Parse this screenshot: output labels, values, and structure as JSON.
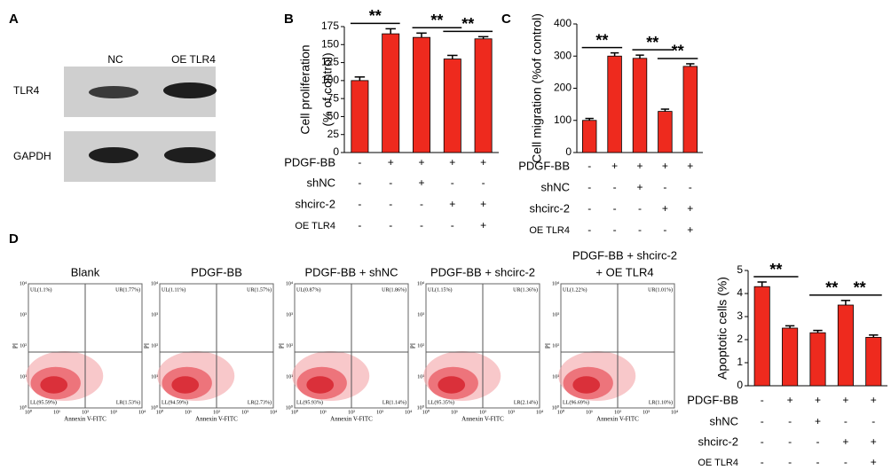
{
  "panels": [
    "A",
    "B",
    "C",
    "D"
  ],
  "western_blot": {
    "columns": [
      "NC",
      "OE TLR4"
    ],
    "rows": [
      "TLR4",
      "GAPDH"
    ]
  },
  "flow": {
    "x_label": "Annexin V-FITC",
    "y_label": "PI",
    "ticks": [
      "10⁰",
      "10¹",
      "10²",
      "10³",
      "10⁴"
    ],
    "plots": [
      {
        "title": [
          "Blank"
        ],
        "UL": "UL(1.1%)",
        "UR": "UR(1.77%)",
        "LL": "LL(95.59%)",
        "LR": "LR(1.53%)"
      },
      {
        "title": [
          "PDGF-BB"
        ],
        "UL": "UL(1.11%)",
        "UR": "UR(1.57%)",
        "LL": "LL(94.59%)",
        "LR": "LR(2.73%)"
      },
      {
        "title": [
          "PDGF-BB + shNC"
        ],
        "UL": "UL(0.87%)",
        "UR": "UR(1.86%)",
        "LL": "LL(95.93%)",
        "LR": "LR(1.14%)"
      },
      {
        "title": [
          "PDGF-BB + shcirc-2"
        ],
        "UL": "UL(1.15%)",
        "UR": "UR(1.36%)",
        "LL": "LL(95.35%)",
        "LR": "LR(2.14%)"
      },
      {
        "title": [
          "PDGF-BB + shcirc-2",
          "+ OE TLR4"
        ],
        "UL": "UL(1.22%)",
        "UR": "UR(1.01%)",
        "LL": "LL(96.69%)",
        "LR": "LR(1.10%)"
      }
    ]
  },
  "chart_data": [
    {
      "type": "bar",
      "y_label": [
        "Cell proliferation",
        "(% of control)"
      ],
      "color": "#ee2a1e",
      "values": [
        100,
        165,
        160,
        130,
        158
      ],
      "errors": [
        5,
        7,
        6,
        5,
        3
      ],
      "ylim": [
        0,
        175
      ],
      "yticks": [
        0,
        25,
        50,
        75,
        100,
        125,
        150,
        175
      ],
      "annotations": [
        {
          "text": "**",
          "between": [
            0,
            1
          ]
        },
        {
          "text": "**",
          "between": [
            2,
            3
          ]
        },
        {
          "text": "**",
          "between": [
            3,
            4
          ]
        }
      ],
      "treatments": [
        {
          "name": "PDGF-BB",
          "signs": [
            "-",
            "+",
            "+",
            "+",
            "+"
          ]
        },
        {
          "name": "shNC",
          "signs": [
            "-",
            "-",
            "+",
            "-",
            "-"
          ]
        },
        {
          "name": "shcirc-2",
          "signs": [
            "-",
            "-",
            "-",
            "+",
            "+"
          ]
        },
        {
          "name": "OE TLR4",
          "signs": [
            "-",
            "-",
            "-",
            "-",
            "+"
          ]
        }
      ]
    },
    {
      "type": "bar",
      "y_label": [
        "Cell migration (%of control)"
      ],
      "color": "#ee2a1e",
      "values": [
        100,
        300,
        293,
        128,
        268
      ],
      "errors": [
        6,
        10,
        10,
        7,
        8
      ],
      "ylim": [
        0,
        400
      ],
      "yticks": [
        0,
        100,
        200,
        300,
        400
      ],
      "annotations": [
        {
          "text": "**",
          "between": [
            0,
            1
          ]
        },
        {
          "text": "**",
          "between": [
            2,
            3
          ]
        },
        {
          "text": "**",
          "between": [
            3,
            4
          ]
        }
      ],
      "treatments": [
        {
          "name": "PDGF-BB",
          "signs": [
            "-",
            "+",
            "+",
            "+",
            "+"
          ]
        },
        {
          "name": "shNC",
          "signs": [
            "-",
            "-",
            "+",
            "-",
            "-"
          ]
        },
        {
          "name": "shcirc-2",
          "signs": [
            "-",
            "-",
            "-",
            "+",
            "+"
          ]
        },
        {
          "name": "OE TLR4",
          "signs": [
            "-",
            "-",
            "-",
            "-",
            "+"
          ]
        }
      ]
    },
    {
      "type": "bar",
      "y_label": [
        "Apoptotic cells (%)"
      ],
      "color": "#ee2a1e",
      "values": [
        4.3,
        2.5,
        2.3,
        3.5,
        2.1
      ],
      "errors": [
        0.2,
        0.1,
        0.1,
        0.2,
        0.1
      ],
      "ylim": [
        0,
        5
      ],
      "yticks": [
        0,
        1,
        2,
        3,
        4,
        5
      ],
      "annotations": [
        {
          "text": "**",
          "between": [
            0,
            1
          ]
        },
        {
          "text": "**",
          "between": [
            2,
            3
          ]
        },
        {
          "text": "**",
          "between": [
            3,
            4
          ]
        }
      ],
      "treatments": [
        {
          "name": "PDGF-BB",
          "signs": [
            "-",
            "+",
            "+",
            "+",
            "+"
          ]
        },
        {
          "name": "shNC",
          "signs": [
            "-",
            "-",
            "+",
            "-",
            "-"
          ]
        },
        {
          "name": "shcirc-2",
          "signs": [
            "-",
            "-",
            "-",
            "+",
            "+"
          ]
        },
        {
          "name": "OE TLR4",
          "signs": [
            "-",
            "-",
            "-",
            "-",
            "+"
          ]
        }
      ]
    }
  ]
}
